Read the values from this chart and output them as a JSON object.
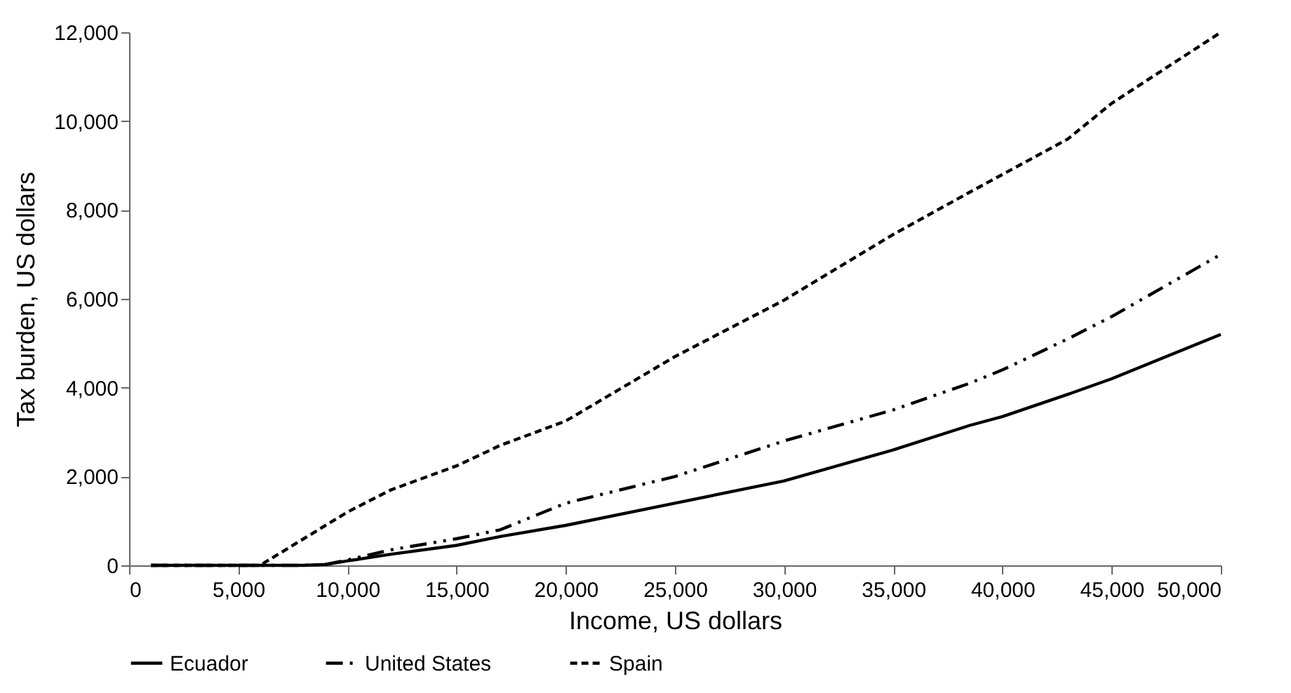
{
  "chart_data": {
    "type": "line",
    "xlabel": "Income, US dollars",
    "ylabel": "Tax burden, US dollars",
    "x": [
      1000,
      5000,
      6000,
      8000,
      9000,
      10000,
      12000,
      15000,
      17000,
      20000,
      25000,
      30000,
      35000,
      38500,
      40000,
      43000,
      45000,
      50000
    ],
    "series": [
      {
        "name": "Ecuador",
        "color": "#000000",
        "line_style": "solid",
        "values": [
          0,
          0,
          0,
          0,
          20,
          100,
          250,
          450,
          650,
          900,
          1400,
          1900,
          2600,
          3150,
          3350,
          3850,
          4200,
          5200
        ]
      },
      {
        "name": "United States",
        "color": "#000000",
        "line_style": "dashdot",
        "values": [
          0,
          0,
          0,
          0,
          20,
          120,
          350,
          600,
          800,
          1400,
          2000,
          2800,
          3500,
          4100,
          4400,
          5100,
          5600,
          7000
        ]
      },
      {
        "name": "Spain",
        "color": "#000000",
        "line_style": "dashed",
        "values": [
          0,
          0,
          0,
          600,
          900,
          1200,
          1700,
          2240,
          2700,
          3250,
          4700,
          5970,
          7450,
          8400,
          8800,
          9600,
          10400,
          12000
        ]
      }
    ],
    "xlim": [
      0,
      50000
    ],
    "xticks": [
      0,
      {
        "value": 5000,
        "label": "5,000"
      },
      {
        "value": 10000,
        "label": "10,000"
      },
      {
        "value": 15000,
        "label": "15,000"
      },
      {
        "value": 20000,
        "label": "20,000"
      },
      {
        "value": 25000,
        "label": "25,000"
      },
      {
        "value": 30000,
        "label": "30,000"
      },
      {
        "value": 35000,
        "label": "35,000"
      },
      {
        "value": 40000,
        "label": "40,000"
      },
      {
        "value": 45000,
        "label": "45,000"
      },
      {
        "value": 50000,
        "label": "50,000"
      }
    ],
    "ylim": [
      0,
      12000
    ],
    "yticks": [
      0,
      {
        "value": 2000,
        "label": "2,000"
      },
      {
        "value": 4000,
        "label": "4,000"
      },
      {
        "value": 6000,
        "label": "6,000"
      },
      {
        "value": 8000,
        "label": "8,000"
      },
      {
        "value": 10000,
        "label": "10,000"
      },
      {
        "value": 12000,
        "label": "12,000"
      }
    ],
    "grid": false,
    "legend": "bottom"
  }
}
